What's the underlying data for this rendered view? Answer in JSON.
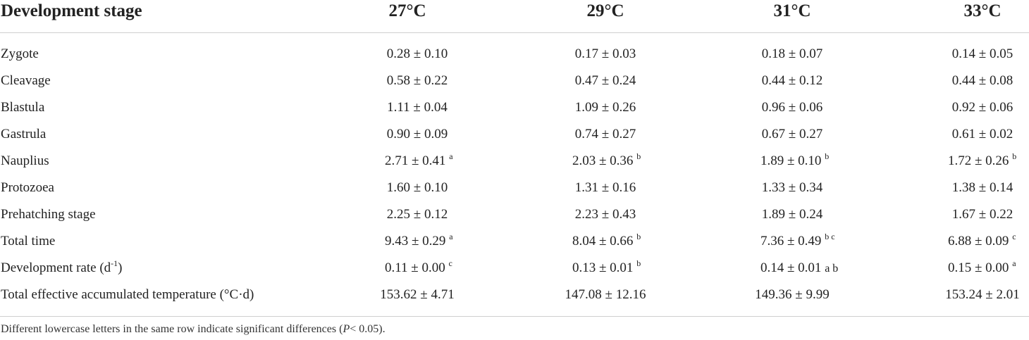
{
  "header": {
    "stage": "Development stage",
    "t27": "27°C",
    "t29": "29°C",
    "t31": "31°C",
    "t33": "33°C"
  },
  "rows": [
    {
      "label": "Zygote",
      "label_sup": "",
      "v27": "0.28 ± 0.10",
      "s27": "",
      "v29": "0.17 ± 0.03",
      "s29": "",
      "v31": "0.18 ± 0.07",
      "s31": "",
      "v33": "0.14 ± 0.05",
      "s33": ""
    },
    {
      "label": "Cleavage",
      "label_sup": "",
      "v27": "0.58 ± 0.22",
      "s27": "",
      "v29": "0.47 ± 0.24",
      "s29": "",
      "v31": "0.44 ± 0.12",
      "s31": "",
      "v33": "0.44 ± 0.08",
      "s33": ""
    },
    {
      "label": "Blastula",
      "label_sup": "",
      "v27": "1.11 ± 0.04",
      "s27": "",
      "v29": "1.09 ± 0.26",
      "s29": "",
      "v31": "0.96 ± 0.06",
      "s31": "",
      "v33": "0.92 ± 0.06",
      "s33": ""
    },
    {
      "label": "Gastrula",
      "label_sup": "",
      "v27": "0.90 ± 0.09",
      "s27": "",
      "v29": "0.74 ± 0.27",
      "s29": "",
      "v31": "0.67 ± 0.27",
      "s31": "",
      "v33": "0.61 ± 0.02",
      "s33": ""
    },
    {
      "label": "Nauplius",
      "label_sup": "",
      "v27": "2.71 ± 0.41",
      "s27": "a",
      "v29": "2.03 ± 0.36",
      "s29": "b",
      "v31": "1.89 ± 0.10",
      "s31": "b",
      "v33": "1.72 ± 0.26",
      "s33": "b"
    },
    {
      "label": "Protozoea",
      "label_sup": "",
      "v27": "1.60 ± 0.10",
      "s27": "",
      "v29": "1.31 ± 0.16",
      "s29": "",
      "v31": "1.33 ± 0.34",
      "s31": "",
      "v33": "1.38 ± 0.14",
      "s33": ""
    },
    {
      "label": "Prehatching stage",
      "label_sup": "",
      "v27": "2.25 ± 0.12",
      "s27": "",
      "v29": "2.23 ± 0.43",
      "s29": "",
      "v31": "1.89 ± 0.24",
      "s31": "",
      "v33": "1.67 ± 0.22",
      "s33": ""
    },
    {
      "label": "Total time",
      "label_sup": "",
      "v27": "9.43 ± 0.29",
      "s27": "a",
      "v29": "8.04 ± 0.66",
      "s29": "b",
      "v31": "7.36 ± 0.49",
      "s31": "b c",
      "v33": "6.88 ± 0.09",
      "s33": "c"
    },
    {
      "label": "Development rate (d",
      "label_sup": "-1",
      "label_end": ")",
      "v27": "0.11 ± 0.00",
      "s27": "c",
      "v29": "0.13 ± 0.01",
      "s29": "b",
      "v31": "0.14 ± 0.01",
      "s31": "a b",
      "v33": "0.15 ± 0.00",
      "s33": "a"
    },
    {
      "label": "Total effective accumulated temperature (°C·d)",
      "label_sup": "",
      "v27": "153.62 ± 4.71",
      "s27": "",
      "v29": "147.08 ± 12.16",
      "s29": "",
      "v31": "149.36 ± 9.99",
      "s31": "",
      "v33": "153.24 ± 2.01",
      "s33": ""
    }
  ],
  "footnote": {
    "before": "Different lowercase letters in the same row indicate significant differences (",
    "italic": "P",
    "after": "< 0.05)."
  }
}
